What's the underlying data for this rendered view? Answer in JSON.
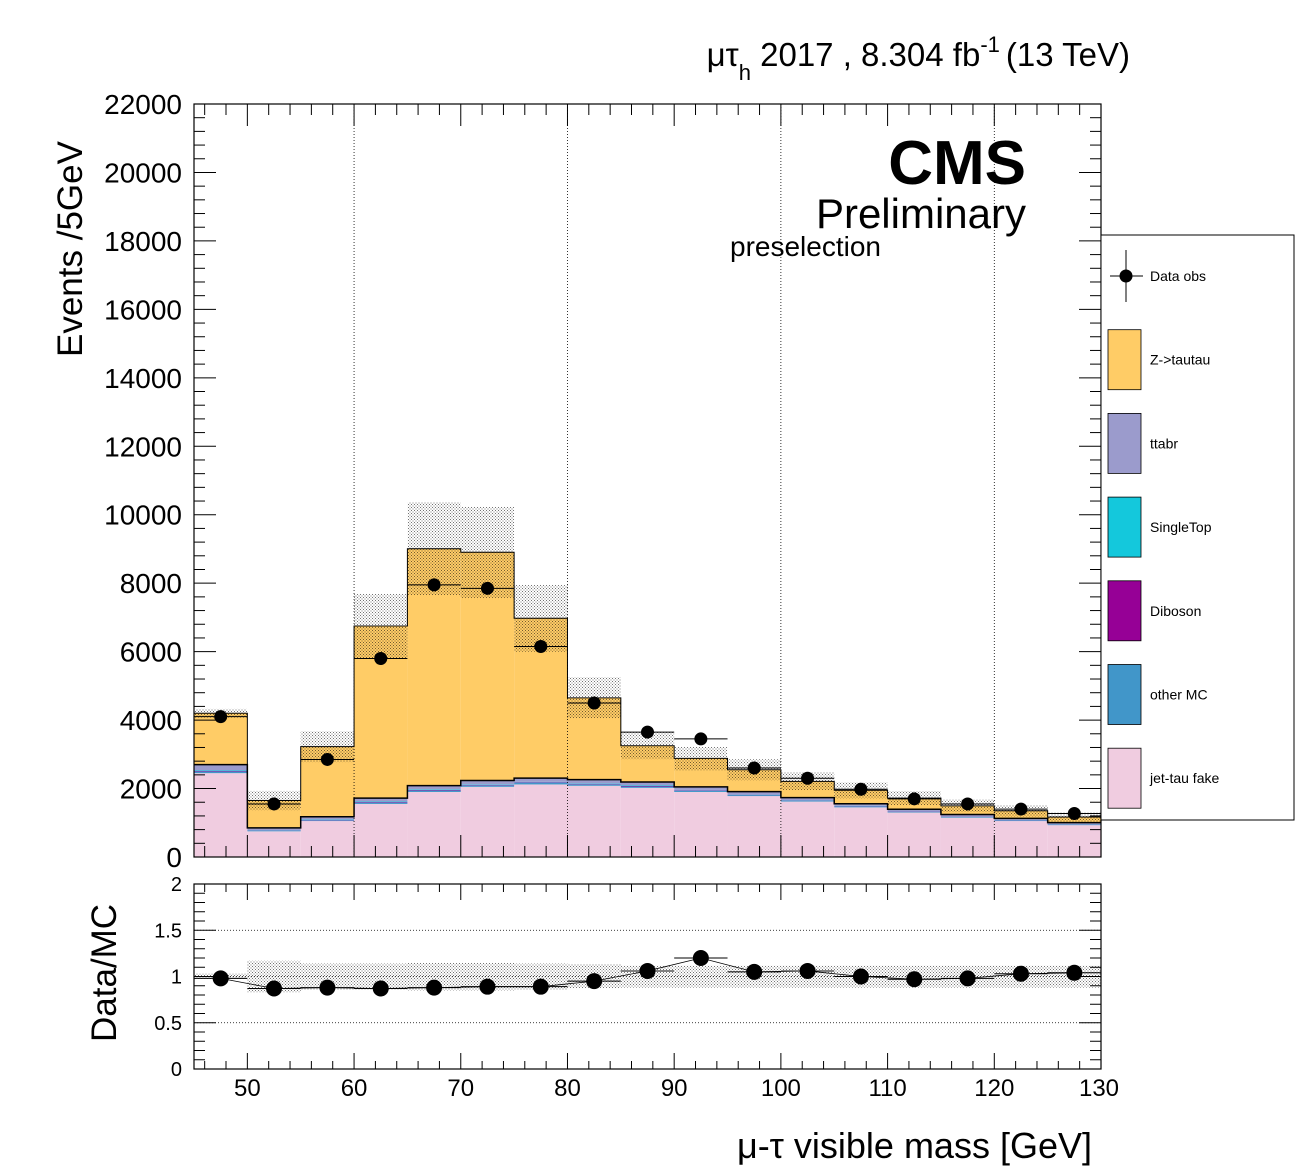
{
  "header": {
    "channel_mu": "μ",
    "channel_tau": "τ",
    "channel_sub": "h",
    "lumi_text": " 2017 , 8.304 fb",
    "lumi_exp": "-1",
    "energy": "(13 TeV)"
  },
  "labels": {
    "cms": "CMS",
    "preliminary": "Preliminary",
    "selection": "preselection"
  },
  "chart_data": [
    {
      "type": "bar",
      "stacked": true,
      "xlabel": "μ-τ visible mass [GeV]",
      "ylabel": "Events /5GeV",
      "xlim": [
        45,
        130
      ],
      "ylim": [
        0,
        22000
      ],
      "xticks": [
        50,
        60,
        70,
        80,
        90,
        100,
        110,
        120,
        130
      ],
      "yticks": [
        0,
        2000,
        4000,
        6000,
        8000,
        10000,
        12000,
        14000,
        16000,
        18000,
        20000,
        22000
      ],
      "grid_x": true,
      "legend_position": "right",
      "bin_edges": [
        45,
        50,
        55,
        60,
        65,
        70,
        75,
        80,
        85,
        90,
        95,
        100,
        105,
        110,
        115,
        120,
        125,
        130
      ],
      "series": [
        {
          "name": "jet-tau fake",
          "color": "#f0cce0",
          "values": [
            2450,
            750,
            1050,
            1550,
            1900,
            2050,
            2120,
            2080,
            2020,
            1900,
            1780,
            1620,
            1450,
            1300,
            1150,
            1050,
            930
          ]
        },
        {
          "name": "other MC",
          "color": "#4196c9",
          "values": [
            50,
            20,
            25,
            40,
            45,
            45,
            45,
            45,
            40,
            35,
            30,
            25,
            25,
            20,
            20,
            15,
            15
          ]
        },
        {
          "name": "Diboson",
          "color": "#960096",
          "values": [
            20,
            10,
            10,
            15,
            15,
            15,
            15,
            15,
            15,
            15,
            10,
            10,
            10,
            10,
            10,
            10,
            10
          ]
        },
        {
          "name": "SingleTop",
          "color": "#14c8dc",
          "values": [
            20,
            10,
            10,
            15,
            15,
            15,
            15,
            15,
            15,
            10,
            10,
            10,
            10,
            10,
            10,
            10,
            10
          ]
        },
        {
          "name": "ttabr",
          "color": "#9b9bcc",
          "values": [
            160,
            60,
            80,
            100,
            110,
            110,
            110,
            105,
            100,
            90,
            80,
            70,
            60,
            55,
            50,
            45,
            40
          ]
        },
        {
          "name": "Z->tautau",
          "color": "#ffcc66",
          "values": [
            1500,
            800,
            2050,
            5030,
            6920,
            6670,
            4670,
            2390,
            1060,
            830,
            640,
            475,
            395,
            325,
            255,
            220,
            165
          ]
        }
      ],
      "data": {
        "name": "Data obs",
        "x": [
          47.5,
          52.5,
          57.5,
          62.5,
          67.5,
          72.5,
          77.5,
          82.5,
          87.5,
          92.5,
          97.5,
          102.5,
          107.5,
          112.5,
          117.5,
          122.5,
          127.5
        ],
        "y": [
          4100,
          1550,
          2850,
          5800,
          7950,
          7850,
          6150,
          4500,
          3650,
          3450,
          2600,
          2300,
          1980,
          1700,
          1550,
          1400,
          1270
        ]
      },
      "uncertainty_rel": [
        0.03,
        0.17,
        0.14,
        0.14,
        0.15,
        0.15,
        0.14,
        0.13,
        0.12,
        0.12,
        0.12,
        0.12,
        0.12,
        0.12,
        0.12,
        0.12,
        0.12
      ]
    },
    {
      "type": "scatter",
      "xlabel": "μ-τ visible mass [GeV]",
      "ylabel": "Data/MC",
      "xlim": [
        45,
        130
      ],
      "ylim": [
        0,
        2
      ],
      "xticks": [
        50,
        60,
        70,
        80,
        90,
        100,
        110,
        120,
        130
      ],
      "yticks": [
        0,
        0.5,
        1,
        1.5,
        2
      ],
      "grid_y": true,
      "x": [
        47.5,
        52.5,
        57.5,
        62.5,
        67.5,
        72.5,
        77.5,
        82.5,
        87.5,
        92.5,
        97.5,
        102.5,
        107.5,
        112.5,
        117.5,
        122.5,
        127.5
      ],
      "y": [
        0.98,
        0.87,
        0.88,
        0.87,
        0.88,
        0.89,
        0.89,
        0.95,
        1.06,
        1.2,
        1.05,
        1.06,
        1.0,
        0.97,
        0.98,
        1.03,
        1.04
      ],
      "uncertainty_rel": [
        0.03,
        0.17,
        0.14,
        0.14,
        0.15,
        0.15,
        0.14,
        0.13,
        0.12,
        0.12,
        0.12,
        0.12,
        0.12,
        0.12,
        0.12,
        0.12,
        0.12
      ]
    }
  ]
}
